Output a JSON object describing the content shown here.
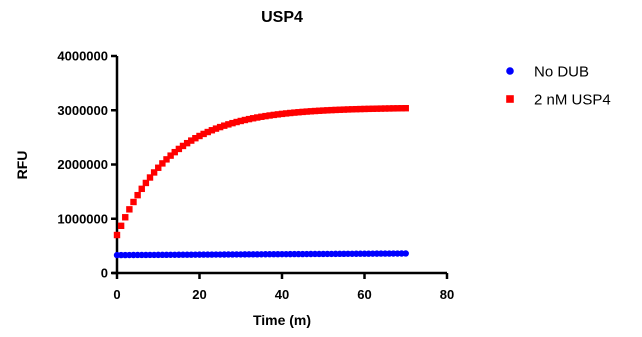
{
  "chart_data": {
    "type": "scatter",
    "title": "USP4",
    "xlabel": "Time (m)",
    "ylabel": "RFU",
    "xlim": [
      0,
      80
    ],
    "ylim": [
      0,
      4000000
    ],
    "xticks": [
      0,
      20,
      40,
      60,
      80
    ],
    "yticks": [
      0,
      1000000,
      2000000,
      3000000,
      4000000
    ],
    "xtick_labels": [
      "0",
      "20",
      "40",
      "60",
      "80"
    ],
    "ytick_labels": [
      "0",
      "1000000",
      "2000000",
      "3000000",
      "4000000"
    ],
    "grid": false,
    "legend_position": "right",
    "series": [
      {
        "name": "No DUB",
        "color": "#0000ff",
        "marker": "circle",
        "model": {
          "kind": "linear",
          "y0": 330000,
          "y1": 360000
        },
        "x_range": [
          0,
          70
        ],
        "x_step": 1
      },
      {
        "name": "2 nM USP4",
        "color": "#ff0000",
        "marker": "square",
        "model": {
          "kind": "exponential",
          "y_start": 700000,
          "y_plateau": 3050000,
          "k": 0.075
        },
        "x_range": [
          0,
          70
        ],
        "x_step": 1
      }
    ]
  }
}
